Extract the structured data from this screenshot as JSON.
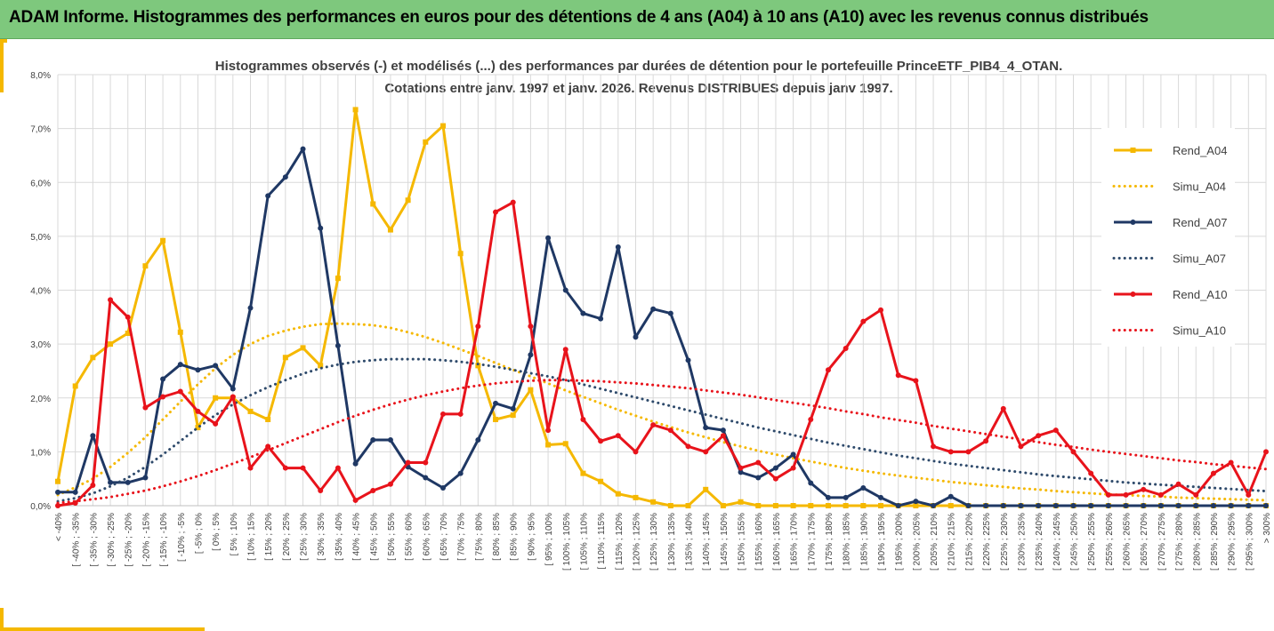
{
  "header": {
    "title": "ADAM Informe. Histogrammes des performances en euros pour des détentions de 4 ans (A04) à 10 ans (A10) avec les revenus connus distribués"
  },
  "chart_data": {
    "type": "line",
    "title_lines": [
      "Histogrammes observés (-) et modélisés (...) des performances par durées de détention pour le portefeuille PrinceETF_PIB4_4_OTAN.",
      "Cotations entre janv. 1997 et janv. 2026. Revenus DISTRIBUES depuis janv 1997."
    ],
    "xlabel": "",
    "ylabel": "",
    "ylim": [
      0,
      8
    ],
    "yticks": [
      "0,0%",
      "1,0%",
      "2,0%",
      "3,0%",
      "4,0%",
      "5,0%",
      "6,0%",
      "7,0%",
      "8,0%"
    ],
    "grid": true,
    "legend_position": "right",
    "categories": [
      "< -40%",
      "[ -40% ; -35%",
      "[ -35% ; -30%",
      "[ -30% ; -25%",
      "[ -25% ; -20%",
      "[ -20% ; -15%",
      "[ -15% ; -10%",
      "[ -10% ; -5%",
      "[ -5% ; 0%",
      "[ 0% ; 5%",
      "[ 5% ; 10%",
      "[ 10% ; 15%",
      "[ 15% ; 20%",
      "[ 20% ; 25%",
      "[ 25% ; 30%",
      "[ 30% ; 35%",
      "[ 35% ; 40%",
      "[ 40% ; 45%",
      "[ 45% ; 50%",
      "[ 50% ; 55%",
      "[ 55% ; 60%",
      "[ 60% ; 65%",
      "[ 65% ; 70%",
      "[ 70% ; 75%",
      "[ 75% ; 80%",
      "[ 80% ; 85%",
      "[ 85% ; 90%",
      "[ 90% ; 95%",
      "[ 95% ; 100%",
      "[ 100% ; 105%",
      "[ 105% ; 110%",
      "[ 110% ; 115%",
      "[ 115% ; 120%",
      "[ 120% ; 125%",
      "[ 125% ; 130%",
      "[ 130% ; 135%",
      "[ 135% ; 140%",
      "[ 140% ; 145%",
      "[ 145% ; 150%",
      "[ 150% ; 155%",
      "[ 155% ; 160%",
      "[ 160% ; 165%",
      "[ 165% ; 170%",
      "[ 170% ; 175%",
      "[ 175% ; 180%",
      "[ 180% ; 185%",
      "[ 185% ; 190%",
      "[ 190% ; 195%",
      "[ 195% ; 200%",
      "[ 200% ; 205%",
      "[ 205% ; 210%",
      "[ 210% ; 215%",
      "[ 215% ; 220%",
      "[ 220% ; 225%",
      "[ 225% ; 230%",
      "[ 230% ; 235%",
      "[ 235% ; 240%",
      "[ 240% ; 245%",
      "[ 245% ; 250%",
      "[ 250% ; 255%",
      "[ 255% ; 260%",
      "[ 260% ; 265%",
      "[ 265% ; 270%",
      "[ 270% ; 275%",
      "[ 275% ; 280%",
      "[ 280% ; 285%",
      "[ 285% ; 290%",
      "[ 290% ; 295%",
      "[ 295% ; 300%",
      "> 300%"
    ],
    "series": [
      {
        "name": "Rend_A04",
        "style": "solid",
        "color": "#f5b800",
        "values": [
          0.45,
          2.22,
          2.75,
          3.0,
          3.2,
          4.45,
          4.92,
          3.22,
          1.45,
          2.0,
          2.0,
          1.75,
          1.6,
          2.75,
          2.93,
          2.6,
          4.22,
          7.35,
          5.6,
          5.12,
          5.67,
          6.75,
          7.05,
          4.68,
          2.6,
          1.6,
          1.68,
          2.15,
          1.13,
          1.15,
          0.6,
          0.45,
          0.22,
          0.15,
          0.07,
          0.0,
          0.0,
          0.3,
          0.0,
          0.07,
          0.0,
          0.0,
          0.0,
          0.0,
          0.0,
          0.0,
          0.0,
          0.0,
          0.0,
          0.0,
          0.0,
          0.0,
          0.0,
          0.0,
          0.0,
          0.0,
          0.0,
          0.0,
          0.0,
          0.0,
          0.0,
          0.0,
          0.0,
          0.0,
          0.0,
          0.0,
          0.0,
          0.0,
          0.0,
          0.0
        ]
      },
      {
        "name": "Simu_A04",
        "style": "dotted",
        "color": "#f5b800",
        "values": [
          0.2,
          0.34,
          0.5,
          0.72,
          0.98,
          1.27,
          1.6,
          1.93,
          2.25,
          2.55,
          2.8,
          3.0,
          3.15,
          3.25,
          3.32,
          3.37,
          3.38,
          3.37,
          3.35,
          3.3,
          3.22,
          3.13,
          3.02,
          2.9,
          2.78,
          2.65,
          2.52,
          2.4,
          2.27,
          2.14,
          2.02,
          1.9,
          1.78,
          1.67,
          1.56,
          1.46,
          1.36,
          1.27,
          1.18,
          1.1,
          1.02,
          0.95,
          0.88,
          0.82,
          0.76,
          0.7,
          0.65,
          0.6,
          0.56,
          0.52,
          0.48,
          0.44,
          0.41,
          0.38,
          0.35,
          0.32,
          0.3,
          0.27,
          0.25,
          0.23,
          0.21,
          0.2,
          0.18,
          0.17,
          0.15,
          0.14,
          0.13,
          0.12,
          0.11,
          0.1
        ]
      },
      {
        "name": "Rend_A07",
        "style": "solid",
        "color": "#1f3864",
        "values": [
          0.25,
          0.25,
          1.3,
          0.43,
          0.43,
          0.52,
          2.35,
          2.62,
          2.52,
          2.6,
          2.17,
          3.67,
          5.75,
          6.1,
          6.62,
          5.15,
          2.97,
          0.78,
          1.22,
          1.22,
          0.72,
          0.52,
          0.33,
          0.6,
          1.22,
          1.9,
          1.8,
          2.8,
          4.97,
          4.0,
          3.57,
          3.47,
          4.8,
          3.13,
          3.65,
          3.57,
          2.7,
          1.45,
          1.4,
          0.62,
          0.52,
          0.7,
          0.95,
          0.42,
          0.15,
          0.15,
          0.33,
          0.15,
          0.0,
          0.08,
          0.0,
          0.17,
          0.0,
          0.0,
          0.0,
          0.0,
          0.0,
          0.0,
          0.0,
          0.0,
          0.0,
          0.0,
          0.0,
          0.0,
          0.0,
          0.0,
          0.0,
          0.0,
          0.0,
          0.0
        ]
      },
      {
        "name": "Simu_A07",
        "style": "dotted",
        "color": "#2e4a6b",
        "values": [
          0.08,
          0.14,
          0.23,
          0.36,
          0.52,
          0.72,
          0.95,
          1.2,
          1.45,
          1.68,
          1.88,
          2.05,
          2.2,
          2.33,
          2.45,
          2.55,
          2.62,
          2.67,
          2.7,
          2.72,
          2.72,
          2.72,
          2.7,
          2.67,
          2.63,
          2.58,
          2.52,
          2.46,
          2.4,
          2.33,
          2.25,
          2.17,
          2.09,
          2.01,
          1.93,
          1.85,
          1.77,
          1.69,
          1.61,
          1.53,
          1.45,
          1.38,
          1.31,
          1.24,
          1.17,
          1.11,
          1.05,
          0.99,
          0.93,
          0.88,
          0.83,
          0.78,
          0.74,
          0.7,
          0.66,
          0.62,
          0.58,
          0.55,
          0.52,
          0.49,
          0.46,
          0.43,
          0.41,
          0.39,
          0.37,
          0.35,
          0.33,
          0.31,
          0.29,
          0.27
        ]
      },
      {
        "name": "Rend_A10",
        "style": "solid",
        "color": "#e8131b",
        "values": [
          0.0,
          0.05,
          0.38,
          3.82,
          3.5,
          1.82,
          2.02,
          2.12,
          1.75,
          1.52,
          2.02,
          0.7,
          1.1,
          0.7,
          0.7,
          0.28,
          0.7,
          0.1,
          0.28,
          0.4,
          0.8,
          0.8,
          1.7,
          1.7,
          3.33,
          5.45,
          5.63,
          3.33,
          1.4,
          2.9,
          1.6,
          1.2,
          1.3,
          1.0,
          1.5,
          1.4,
          1.1,
          1.0,
          1.3,
          0.7,
          0.8,
          0.5,
          0.7,
          1.6,
          2.52,
          2.92,
          3.42,
          3.63,
          2.42,
          2.32,
          1.1,
          1.0,
          1.0,
          1.2,
          1.8,
          1.1,
          1.3,
          1.4,
          1.0,
          0.6,
          0.2,
          0.2,
          0.3,
          0.2,
          0.4,
          0.2,
          0.6,
          0.8,
          0.2,
          1.0
        ]
      },
      {
        "name": "Simu_A10",
        "style": "dotted",
        "color": "#e8131b",
        "values": [
          0.05,
          0.08,
          0.12,
          0.16,
          0.22,
          0.28,
          0.36,
          0.45,
          0.55,
          0.66,
          0.78,
          0.9,
          1.03,
          1.16,
          1.29,
          1.42,
          1.55,
          1.67,
          1.78,
          1.88,
          1.97,
          2.05,
          2.12,
          2.18,
          2.23,
          2.27,
          2.3,
          2.32,
          2.33,
          2.33,
          2.32,
          2.31,
          2.29,
          2.27,
          2.24,
          2.21,
          2.18,
          2.14,
          2.1,
          2.06,
          2.01,
          1.96,
          1.91,
          1.86,
          1.81,
          1.75,
          1.7,
          1.64,
          1.59,
          1.54,
          1.48,
          1.43,
          1.38,
          1.33,
          1.28,
          1.23,
          1.18,
          1.13,
          1.09,
          1.04,
          1.0,
          0.96,
          0.92,
          0.88,
          0.84,
          0.81,
          0.77,
          0.74,
          0.71,
          0.68
        ]
      }
    ]
  }
}
